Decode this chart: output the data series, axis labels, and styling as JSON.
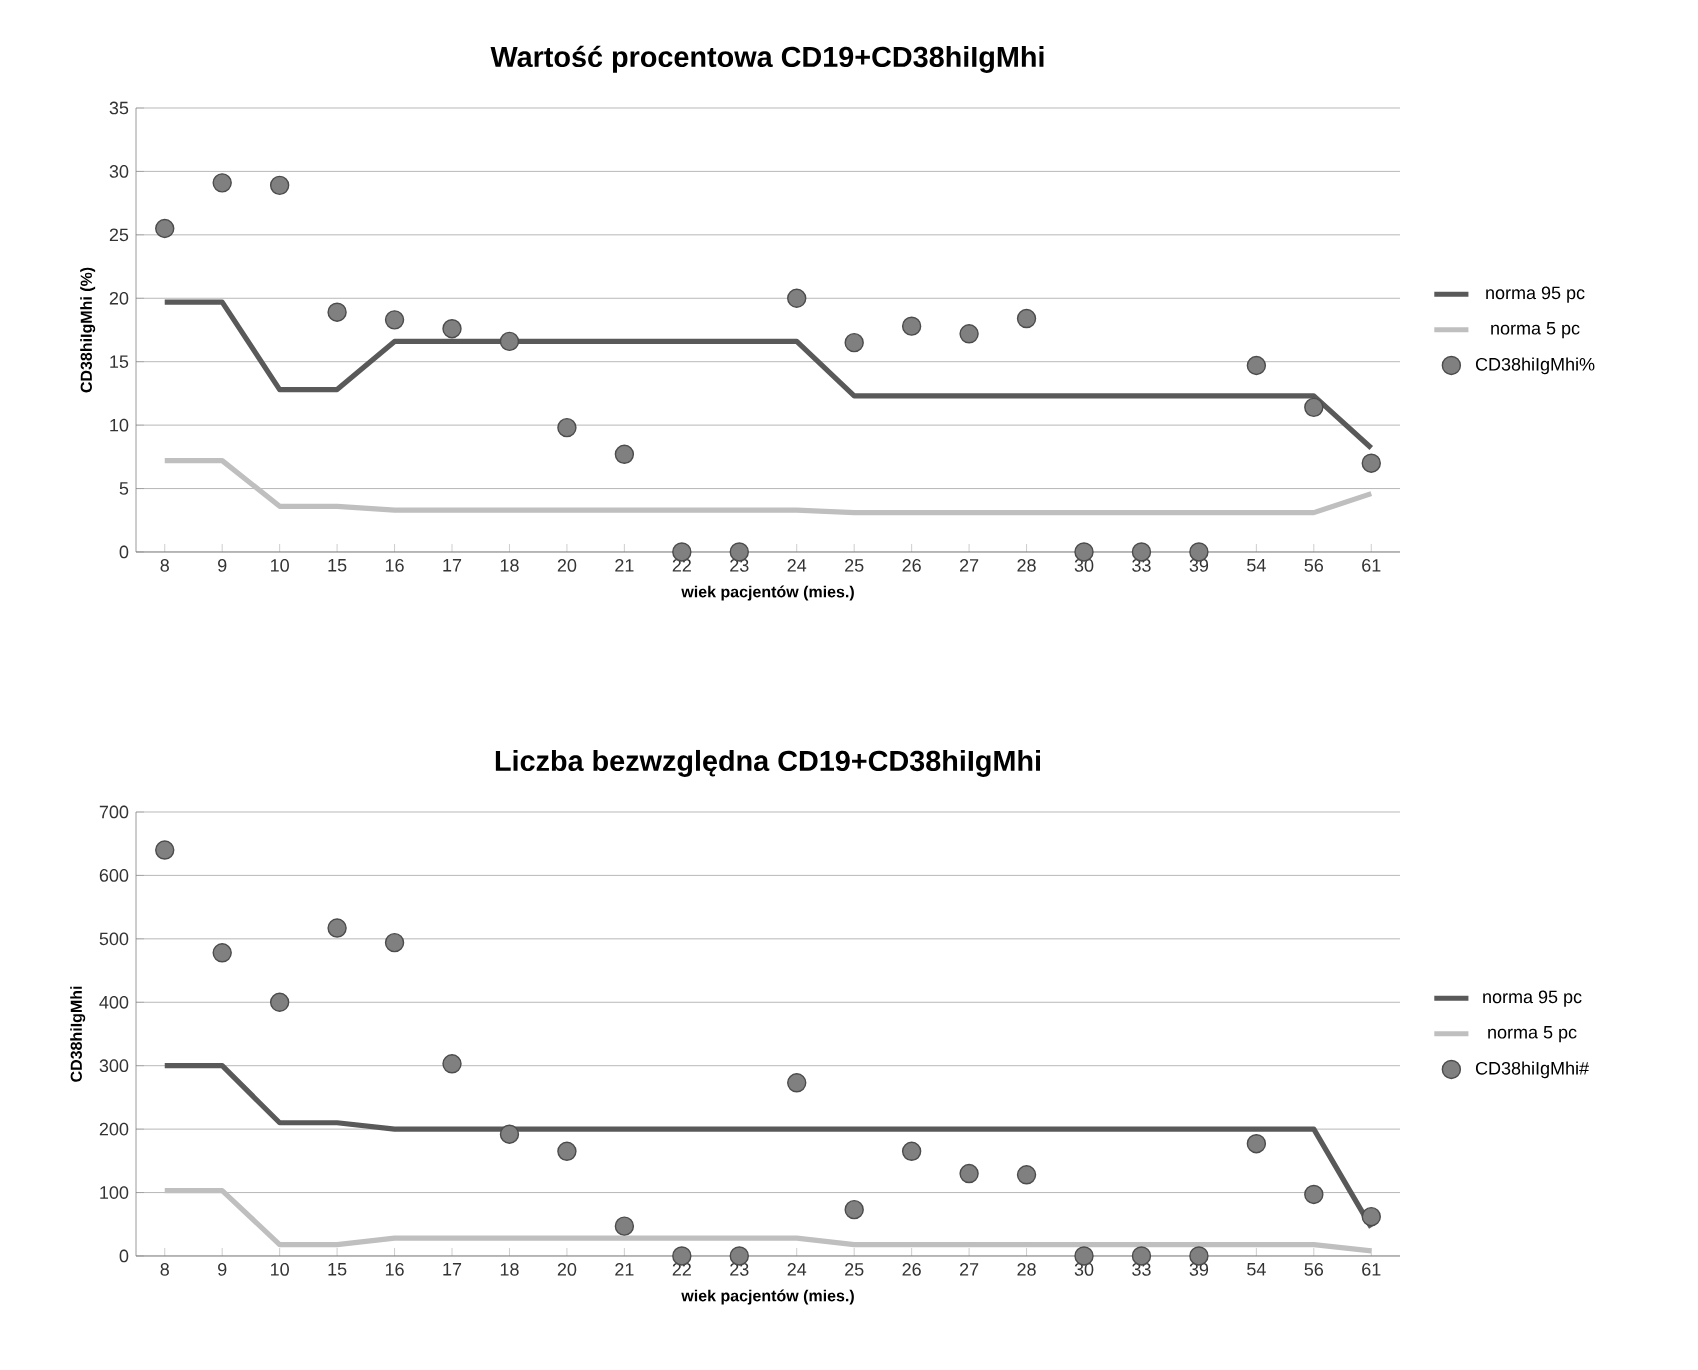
{
  "chart_data": [
    {
      "type": "line",
      "title": "Wartość procentowa CD19+CD38hiIgMhi",
      "xlabel": "wiek pacjentów  (mies.)",
      "ylabel": "CD38hiIgMhi (%)",
      "categories": [
        "8",
        "9",
        "10",
        "15",
        "16",
        "17",
        "18",
        "20",
        "21",
        "22",
        "23",
        "24",
        "25",
        "26",
        "27",
        "28",
        "30",
        "33",
        "39",
        "54",
        "56",
        "61"
      ],
      "ylim": [
        0,
        35
      ],
      "yticks": [
        0,
        5,
        10,
        15,
        20,
        25,
        30,
        35
      ],
      "grid": "y",
      "legend": "right",
      "line_style": "solid",
      "marker": "none",
      "series": [
        {
          "name": "norma 95 pc",
          "color": "#595959",
          "values": [
            19.7,
            19.7,
            12.8,
            12.8,
            16.6,
            16.6,
            16.6,
            16.6,
            16.6,
            16.6,
            16.6,
            16.6,
            12.3,
            12.3,
            12.3,
            12.3,
            12.3,
            12.3,
            12.3,
            12.3,
            12.3,
            8.2
          ]
        },
        {
          "name": "norma 5 pc",
          "color": "#bfbfbf",
          "values": [
            7.2,
            7.2,
            3.6,
            3.6,
            3.3,
            3.3,
            3.3,
            3.3,
            3.3,
            3.3,
            3.3,
            3.3,
            3.1,
            3.1,
            3.1,
            3.1,
            3.1,
            3.1,
            3.1,
            3.1,
            3.1,
            4.6
          ]
        },
        {
          "name": "CD38hiIgMhi%",
          "type": "scatter",
          "marker": "circle",
          "color": "#808080",
          "values": [
            25.5,
            29.1,
            28.9,
            18.9,
            18.3,
            17.6,
            16.6,
            9.8,
            7.7,
            0,
            0,
            20,
            16.5,
            17.8,
            17.2,
            18.4,
            0,
            0,
            0,
            14.7,
            11.4,
            7.0
          ]
        }
      ]
    },
    {
      "type": "line",
      "title": "Liczba bezwzględna CD19+CD38hiIgMhi",
      "xlabel": "wiek pacjentów  (mies.)",
      "ylabel": "CD38hiIgMhi",
      "categories": [
        "8",
        "9",
        "10",
        "15",
        "16",
        "17",
        "18",
        "20",
        "21",
        "22",
        "23",
        "24",
        "25",
        "26",
        "27",
        "28",
        "30",
        "33",
        "39",
        "54",
        "56",
        "61"
      ],
      "ylim": [
        0,
        700
      ],
      "yticks": [
        0,
        100,
        200,
        300,
        400,
        500,
        600,
        700
      ],
      "grid": "y",
      "legend": "right",
      "line_style": "solid",
      "marker": "none",
      "series": [
        {
          "name": "norma 95 pc",
          "color": "#595959",
          "values": [
            300,
            300,
            210,
            210,
            200,
            200,
            200,
            200,
            200,
            200,
            200,
            200,
            200,
            200,
            200,
            200,
            200,
            200,
            200,
            200,
            200,
            45
          ]
        },
        {
          "name": "norma 5 pc",
          "color": "#bfbfbf",
          "values": [
            103,
            103,
            18,
            18,
            28,
            28,
            28,
            28,
            28,
            28,
            28,
            28,
            18,
            18,
            18,
            18,
            18,
            18,
            18,
            18,
            18,
            8
          ]
        },
        {
          "name": "CD38hiIgMhi#",
          "type": "scatter",
          "marker": "circle",
          "color": "#808080",
          "values": [
            640,
            478,
            400,
            517,
            494,
            303,
            192,
            165,
            47,
            0,
            0,
            273,
            73,
            165,
            130,
            128,
            0,
            0,
            0,
            177,
            97,
            62
          ]
        }
      ]
    }
  ]
}
